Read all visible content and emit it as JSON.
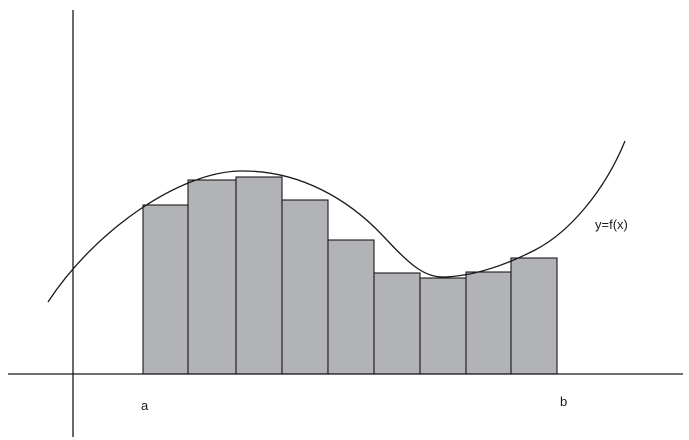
{
  "labels": {
    "a": "a",
    "b": "b",
    "curve": "y=f(x)"
  },
  "colors": {
    "rectangle_fill": "#b1b3b6",
    "stroke": "#1a1a1a"
  },
  "rectangles": {
    "count": 9
  }
}
